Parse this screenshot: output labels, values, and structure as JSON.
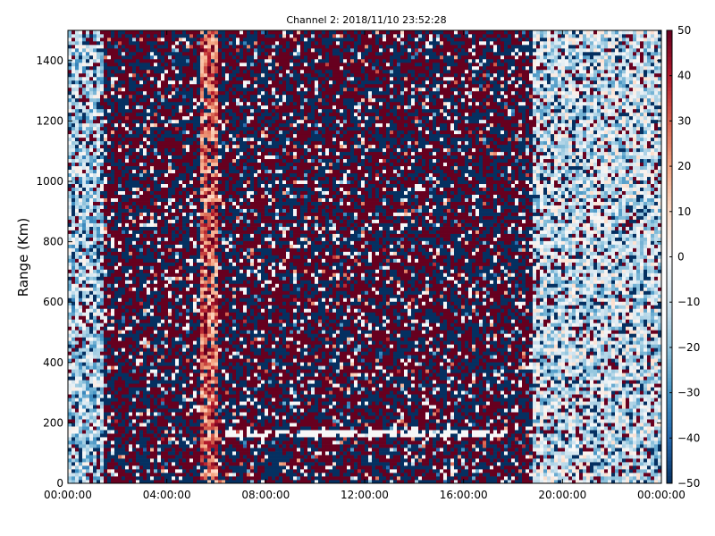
{
  "chart_data": {
    "type": "heatmap",
    "title": "Channel 2: 2018/11/10 23:52:28",
    "xlabel": "",
    "ylabel": "Range (Km)",
    "x_ticks": [
      "00:00:00",
      "04:00:00",
      "08:00:00",
      "12:00:00",
      "16:00:00",
      "20:00:00",
      "00:00:00"
    ],
    "y_ticks": [
      "0",
      "200",
      "400",
      "600",
      "800",
      "1000",
      "1200",
      "1400"
    ],
    "ylim": [
      0,
      1500
    ],
    "xlim_hours": [
      0,
      24
    ],
    "colorbar": {
      "min": -50,
      "max": 50,
      "ticks": [
        "50",
        "40",
        "30",
        "20",
        "10",
        "0",
        "−10",
        "−20",
        "−30",
        "−40",
        "−50"
      ],
      "colormap": "RdBu_r",
      "colors": [
        "#053061",
        "#2166ac",
        "#4393c3",
        "#92c5de",
        "#d1e5f0",
        "#f7f7f7",
        "#fddbc7",
        "#f4a582",
        "#d6604d",
        "#b2182b",
        "#67001f"
      ]
    },
    "features": {
      "dominant_pattern": "noisy alternating extreme values (-50 / +50) across most of the day",
      "smooth_regions": [
        {
          "time_hours": [
            0,
            1.5
          ],
          "range_km": [
            0,
            1500
          ],
          "value_approx": -15
        },
        {
          "time_hours": [
            5.4,
            6.0
          ],
          "range_km": [
            0,
            1500
          ],
          "value_approx": 28
        },
        {
          "time_hours": [
            18.8,
            24
          ],
          "range_km": [
            0,
            1500
          ],
          "value_approx": -10
        }
      ],
      "gap_line": {
        "time_hours": [
          6.4,
          17.8
        ],
        "range_km": 165
      }
    }
  }
}
